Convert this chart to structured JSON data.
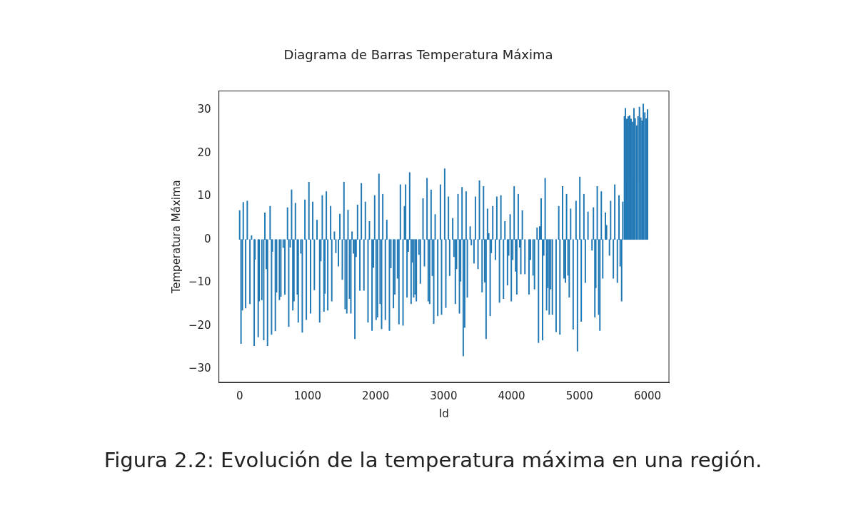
{
  "chart_data": {
    "type": "bar",
    "title": "Diagrama de Barras Temperatura Máxima",
    "xlabel": "Id",
    "ylabel": "Temperatura Máxima",
    "annotations": [
      "Figura 2.2: Evolución de la temperatura máxima en una región."
    ],
    "x": [
      0,
      20,
      40,
      53,
      88,
      112,
      151,
      175,
      214,
      225,
      273,
      287,
      326,
      354,
      371,
      392,
      410,
      448,
      469,
      481,
      525,
      543,
      585,
      606,
      641,
      665,
      704,
      722,
      743,
      764,
      782,
      799,
      820,
      848,
      862,
      900,
      921,
      960,
      981,
      1019,
      1043,
      1075,
      1099,
      1138,
      1177,
      1194,
      1215,
      1240,
      1254,
      1275,
      1296,
      1338,
      1355,
      1394,
      1415,
      1453,
      1474,
      1510,
      1534,
      1552,
      1576,
      1594,
      1615,
      1636,
      1653,
      1674,
      1695,
      1713,
      1734,
      1768,
      1790,
      1828,
      1849,
      1888,
      1909,
      1947,
      1968,
      1986,
      2007,
      2028,
      2049,
      2066,
      2088,
      2105,
      2143,
      2165,
      2203,
      2224,
      2262,
      2283,
      2322,
      2343,
      2364,
      2403,
      2424,
      2441,
      2462,
      2480,
      2501,
      2522,
      2539,
      2560,
      2581,
      2599,
      2637,
      2658,
      2697,
      2718,
      2756,
      2774,
      2795,
      2816,
      2834,
      2855,
      2876,
      2914,
      2953,
      2970,
      3016,
      3033,
      3071,
      3089,
      3134,
      3152,
      3173,
      3190,
      3212,
      3233,
      3250,
      3271,
      3289,
      3310,
      3331,
      3349,
      3391,
      3408,
      3447,
      3468,
      3506,
      3527,
      3566,
      3587,
      3604,
      3625,
      3646,
      3664,
      3685,
      3702,
      3723,
      3762,
      3783,
      3822,
      3843,
      3881,
      3902,
      3940,
      3958,
      3979,
      3996,
      4017,
      4038,
      4059,
      4077,
      4098,
      4119,
      4136,
      4158,
      4196,
      4256,
      4277,
      4316,
      4337,
      4375,
      4396,
      4414,
      4435,
      4456,
      4473,
      4494,
      4515,
      4533,
      4554,
      4575,
      4600,
      4655,
      4694,
      4711,
      4750,
      4771,
      4792,
      4809,
      4830,
      4848,
      4869,
      4906,
      4948,
      4969,
      5004,
      5025,
      5064,
      5085,
      5124,
      5183,
      5204,
      5225,
      5239,
      5260,
      5281,
      5299,
      5320,
      5341,
      5380,
      5397,
      5440,
      5457,
      5497,
      5518,
      5556,
      5580,
      5598,
      5619,
      5636,
      5660,
      5674,
      5695,
      5716,
      5737,
      5758,
      5778,
      5800,
      5818,
      5840,
      5860,
      5881,
      5900,
      5918,
      5937,
      5960,
      5980,
      6000
    ],
    "values": [
      6.7,
      -24.1,
      -16.4,
      8.6,
      -15.9,
      8.9,
      -14.9,
      0.9,
      -24.6,
      -4.6,
      -22.6,
      -14.3,
      -14.0,
      -23.3,
      6.2,
      -6.8,
      -24.6,
      7.7,
      -22.0,
      -2.8,
      -21.2,
      -12.2,
      -14.0,
      -13.2,
      -1.9,
      -12.7,
      7.4,
      -20.2,
      -1.8,
      11.5,
      -16.4,
      -14.3,
      8.4,
      -12.7,
      -19.2,
      -3.2,
      -21.5,
      9.2,
      -18.6,
      13.3,
      -17.1,
      8.7,
      -11.7,
      4.5,
      -19.2,
      -5.0,
      10.2,
      -16.7,
      -12.5,
      11.1,
      -16.4,
      7.7,
      -14.3,
      1.8,
      -3.1,
      -6.2,
      5.9,
      -9.3,
      13.3,
      -16.1,
      -17.1,
      6.8,
      -13.7,
      -17.1,
      1.8,
      -3.2,
      -23.0,
      -4.0,
      8.0,
      -11.8,
      13.0,
      -11.8,
      8.7,
      -19.2,
      4.2,
      -21.1,
      -6.5,
      10.2,
      -18.6,
      -18.0,
      15.2,
      -14.9,
      -20.7,
      10.5,
      -18.6,
      4.5,
      -21.1,
      -6.6,
      -15.9,
      -12.7,
      -9.0,
      -19.6,
      12.7,
      -19.9,
      7.7,
      12.7,
      -13.4,
      -2.8,
      15.5,
      -14.9,
      -5.3,
      -13.4,
      -12.7,
      -14.3,
      -3.5,
      -10.2,
      9.5,
      -6.2,
      14.2,
      -14.3,
      -14.9,
      11.5,
      -8.4,
      -19.5,
      5.8,
      -17.7,
      12.7,
      -17.4,
      16.4,
      -15.8,
      9.9,
      -8.4,
      4.9,
      -4.0,
      -14.9,
      -6.8,
      10.5,
      -17.1,
      -9.7,
      12.1,
      -27.0,
      -20.4,
      11.1,
      -13.4,
      3.0,
      -1.3,
      -5.5,
      9.9,
      -6.8,
      13.6,
      -12.2,
      12.3,
      -9.9,
      -23.0,
      7.1,
      1.4,
      -17.7,
      -3.1,
      7.7,
      -4.7,
      9.9,
      -14.6,
      10.2,
      -13.7,
      4.2,
      -10.6,
      -3.7,
      5.8,
      -14.3,
      -4.7,
      12.3,
      -7.4,
      -12.7,
      10.5,
      -1.8,
      -8.0,
      6.7,
      -8.0,
      -12.7,
      -4.7,
      -8.3,
      -11.5,
      2.7,
      -23.9,
      3.0,
      9.5,
      -23.3,
      -3.7,
      14.2,
      -16.4,
      -11.2,
      -17.4,
      -11.5,
      -17.4,
      -21.4,
      7.7,
      -22.0,
      12.3,
      -9.0,
      -10.0,
      10.5,
      -8.3,
      -13.4,
      7.1,
      -20.8,
      8.9,
      -25.9,
      14.5,
      -19.0,
      10.5,
      -10.0,
      6.4,
      -2.5,
      7.4,
      -18.0,
      -11.2,
      12.3,
      -17.4,
      -21.1,
      11.1,
      -9.0,
      6.2,
      3.3,
      -3.7,
      8.9,
      -9.0,
      12.7,
      -10.0,
      10.2,
      -6.2,
      -14.3,
      8.7,
      28.5,
      30.4,
      27.9,
      28.5,
      28.7,
      27.9,
      27.2,
      30.4,
      28.0,
      26.4,
      28.5,
      30.7,
      28.2,
      27.5,
      31.4,
      29.4,
      28.0,
      30.1
    ],
    "color": "#1f77b4",
    "xlim": [
      -305,
      6315
    ],
    "ylim": [
      -33.1,
      34.4
    ],
    "xticks": [
      0,
      1000,
      2000,
      3000,
      4000,
      5000,
      6000
    ],
    "yticks": [
      -30,
      -20,
      -10,
      0,
      10,
      20,
      30
    ],
    "grid": false,
    "legend": false
  }
}
